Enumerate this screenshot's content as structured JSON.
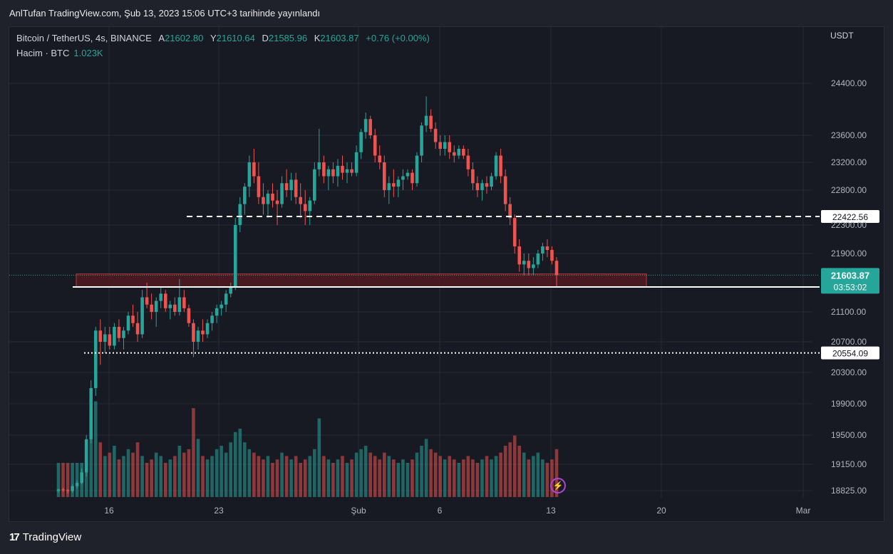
{
  "header": {
    "published": "AnlTufan TradingView.com, Şub 13, 2023 15:06 UTC+3 tarihinde yayınlandı"
  },
  "legend": {
    "symbol": "Bitcoin / TetherUS, 4s, BINANCE",
    "open_label": "A",
    "open": "21602.80",
    "high_label": "Y",
    "high": "21610.64",
    "low_label": "D",
    "low": "21585.96",
    "close_label": "K",
    "close": "21603.87",
    "change": "+0.76 (+0.00%)",
    "volume_label": "Hacim · BTC",
    "volume": "1.023K"
  },
  "axis": {
    "currency": "USDT"
  },
  "footer": {
    "brand": "TradingView",
    "logo": "tradingview-logo"
  },
  "icons": {
    "alert": "lightning-icon"
  },
  "colors": {
    "up": "#26a69a",
    "down": "#ef5350",
    "background": "#171a23",
    "zone": "#7a2026"
  },
  "chart_data": {
    "type": "candlestick",
    "symbol": "Bitcoin / TetherUS",
    "interval": "4s",
    "exchange": "BINANCE",
    "y_ticks": [
      "24400.00",
      "23600.00",
      "23200.00",
      "22800.00",
      "22300.00",
      "21900.00",
      "21100.00",
      "20700.00",
      "20300.00",
      "19900.00",
      "19500.00",
      "19150.00",
      "18825.00"
    ],
    "x_ticks": [
      "16",
      "23",
      "Şub",
      "6",
      "13",
      "20",
      "Mar"
    ],
    "price_labels": [
      {
        "value": "22422.56",
        "style": "dashed"
      },
      {
        "value": "21441.34",
        "style": "solid"
      },
      {
        "value": "20554.09",
        "style": "dotted"
      }
    ],
    "last_price": {
      "value": "21603.87",
      "countdown": "03:53:02"
    },
    "support_zone": {
      "low": 21440,
      "high": 21620
    },
    "candles_approx": [
      [
        18820,
        18850,
        18800,
        18840
      ],
      [
        18840,
        18860,
        18810,
        18830
      ],
      [
        18830,
        18845,
        18790,
        18820
      ],
      [
        18820,
        18900,
        18800,
        18880
      ],
      [
        18880,
        18950,
        18850,
        18920
      ],
      [
        18920,
        19100,
        18900,
        19050
      ],
      [
        19050,
        19500,
        19000,
        19450
      ],
      [
        19450,
        20200,
        19400,
        20100
      ],
      [
        20100,
        20900,
        20000,
        20850
      ],
      [
        20850,
        21000,
        20400,
        20700
      ],
      [
        20700,
        20900,
        20550,
        20800
      ],
      [
        20800,
        20900,
        20600,
        20650
      ],
      [
        20650,
        20950,
        20600,
        20900
      ],
      [
        20900,
        21000,
        20700,
        20750
      ],
      [
        20750,
        20900,
        20600,
        20850
      ],
      [
        20850,
        21100,
        20800,
        21050
      ],
      [
        21050,
        21200,
        20900,
        20950
      ],
      [
        20950,
        21100,
        20700,
        20800
      ],
      [
        20800,
        21400,
        20750,
        21300
      ],
      [
        21300,
        21500,
        21150,
        21200
      ],
      [
        21200,
        21350,
        21000,
        21100
      ],
      [
        21100,
        21300,
        20900,
        21250
      ],
      [
        21250,
        21450,
        21150,
        21350
      ],
      [
        21350,
        21400,
        21100,
        21150
      ],
      [
        21150,
        21250,
        21000,
        21200
      ],
      [
        21200,
        21300,
        21050,
        21100
      ],
      [
        21100,
        21550,
        21050,
        21300
      ],
      [
        21300,
        21400,
        21100,
        21150
      ],
      [
        21150,
        21200,
        20900,
        20950
      ],
      [
        20950,
        21000,
        20500,
        20700
      ],
      [
        20700,
        20900,
        20600,
        20850
      ],
      [
        20850,
        21000,
        20700,
        20800
      ],
      [
        20800,
        21000,
        20750,
        20950
      ],
      [
        20950,
        21100,
        20850,
        21050
      ],
      [
        21050,
        21200,
        20950,
        21150
      ],
      [
        21150,
        21250,
        21050,
        21200
      ],
      [
        21200,
        21400,
        21100,
        21350
      ],
      [
        21350,
        21500,
        21300,
        21450
      ],
      [
        21450,
        22400,
        21400,
        22300
      ],
      [
        22300,
        22700,
        22200,
        22600
      ],
      [
        22600,
        22900,
        22450,
        22850
      ],
      [
        22850,
        23300,
        22700,
        23200
      ],
      [
        23200,
        23400,
        22900,
        23000
      ],
      [
        23000,
        23200,
        22600,
        22700
      ],
      [
        22700,
        22900,
        22450,
        22600
      ],
      [
        22600,
        22800,
        22400,
        22750
      ],
      [
        22750,
        22900,
        22550,
        22650
      ],
      [
        22650,
        22800,
        22300,
        22600
      ],
      [
        22600,
        23000,
        22550,
        22900
      ],
      [
        22900,
        23100,
        22700,
        22800
      ],
      [
        22800,
        23050,
        22650,
        22950
      ],
      [
        22950,
        23050,
        22600,
        22700
      ],
      [
        22700,
        22900,
        22400,
        22600
      ],
      [
        22600,
        22800,
        22300,
        22500
      ],
      [
        22500,
        22700,
        22300,
        22650
      ],
      [
        22650,
        23200,
        22600,
        23100
      ],
      [
        23100,
        23700,
        23000,
        23200
      ],
      [
        23200,
        23300,
        22900,
        23000
      ],
      [
        23000,
        23150,
        22800,
        23100
      ],
      [
        23100,
        23200,
        22900,
        23000
      ],
      [
        23000,
        23250,
        22850,
        23150
      ],
      [
        23150,
        23300,
        22950,
        23050
      ],
      [
        23050,
        23200,
        22900,
        23100
      ],
      [
        23100,
        23200,
        23000,
        23050
      ],
      [
        23050,
        23450,
        23000,
        23350
      ],
      [
        23350,
        23700,
        23250,
        23650
      ],
      [
        23650,
        23950,
        23550,
        23850
      ],
      [
        23850,
        23900,
        23550,
        23600
      ],
      [
        23600,
        23700,
        23200,
        23300
      ],
      [
        23300,
        23450,
        23100,
        23200
      ],
      [
        23200,
        23300,
        22700,
        22800
      ],
      [
        22800,
        23000,
        22600,
        22900
      ],
      [
        22900,
        23100,
        22700,
        22850
      ],
      [
        22850,
        23000,
        22700,
        22950
      ],
      [
        22950,
        23100,
        22800,
        23000
      ],
      [
        23000,
        23100,
        22950,
        23050
      ],
      [
        23050,
        23100,
        22800,
        22900
      ],
      [
        22900,
        23350,
        22850,
        23300
      ],
      [
        23300,
        23800,
        23200,
        23750
      ],
      [
        23750,
        24200,
        23650,
        23900
      ],
      [
        23900,
        24000,
        23650,
        23700
      ],
      [
        23700,
        23800,
        23400,
        23500
      ],
      [
        23500,
        23600,
        23300,
        23400
      ],
      [
        23400,
        23600,
        23300,
        23500
      ],
      [
        23500,
        23600,
        23250,
        23350
      ],
      [
        23350,
        23450,
        23200,
        23300
      ],
      [
        23300,
        23450,
        23250,
        23400
      ],
      [
        23400,
        23450,
        23250,
        23300
      ],
      [
        23300,
        23400,
        23000,
        23100
      ],
      [
        23100,
        23200,
        22800,
        22900
      ],
      [
        22900,
        23000,
        22700,
        22800
      ],
      [
        22800,
        22950,
        22650,
        22900
      ],
      [
        22900,
        23000,
        22750,
        22850
      ],
      [
        22850,
        23050,
        22800,
        23000
      ],
      [
        23000,
        23350,
        22950,
        23300
      ],
      [
        23300,
        23400,
        22900,
        23000
      ],
      [
        23000,
        23100,
        22500,
        22600
      ],
      [
        22600,
        22700,
        22300,
        22400
      ],
      [
        22400,
        22450,
        21900,
        22000
      ],
      [
        22000,
        22100,
        21650,
        21750
      ],
      [
        21750,
        21900,
        21600,
        21800
      ],
      [
        21800,
        21900,
        21600,
        21700
      ],
      [
        21700,
        21850,
        21600,
        21750
      ],
      [
        21750,
        21950,
        21700,
        21900
      ],
      [
        21900,
        22050,
        21800,
        22000
      ],
      [
        22000,
        22100,
        21850,
        21950
      ],
      [
        21950,
        22000,
        21750,
        21800
      ],
      [
        21800,
        21850,
        21440,
        21603.87
      ]
    ],
    "volumes_approx": [
      1,
      1,
      1,
      1,
      1,
      1,
      1.5,
      2.5,
      2.8,
      1.6,
      1.2,
      1.3,
      1.5,
      1.1,
      1.2,
      1.4,
      1.3,
      1.6,
      1.2,
      1.0,
      1.1,
      1.3,
      1.2,
      1.0,
      1.1,
      1.2,
      1.5,
      1.3,
      1.4,
      2.6,
      1.7,
      1.2,
      1.1,
      1.2,
      1.4,
      1.5,
      1.3,
      1.6,
      1.9,
      2.0,
      1.6,
      1.4,
      1.3,
      1.2,
      1.1,
      1.2,
      1.0,
      1.1,
      1.3,
      1.2,
      1.1,
      1.2,
      1.0,
      1.1,
      1.2,
      1.4,
      2.3,
      1.2,
      1.1,
      1.0,
      1.1,
      1.2,
      1.0,
      1.1,
      1.3,
      1.4,
      1.5,
      1.3,
      1.2,
      1.1,
      1.3,
      1.2,
      1.1,
      1.0,
      1.1,
      1.0,
      1.1,
      1.3,
      1.5,
      1.7,
      1.4,
      1.3,
      1.2,
      1.1,
      1.2,
      1.1,
      1.0,
      1.1,
      1.2,
      1.1,
      1.0,
      1.1,
      1.2,
      1.1,
      1.2,
      1.3,
      1.5,
      1.6,
      1.8,
      1.5,
      1.3,
      1.1,
      1.2,
      1.3,
      1.1,
      1.0,
      1.1,
      1.4
    ]
  }
}
